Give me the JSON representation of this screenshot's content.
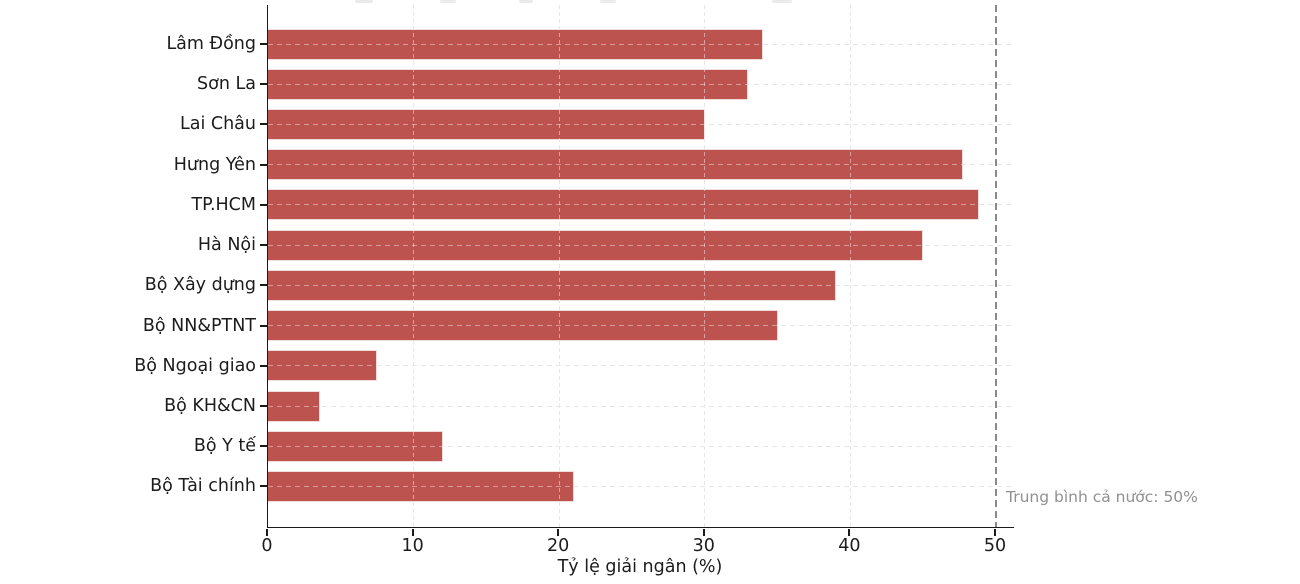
{
  "chart_data": {
    "type": "bar",
    "orientation": "horizontal",
    "categories": [
      "Lâm Đồng",
      "Sơn La",
      "Lai Châu",
      "Hưng Yên",
      "TP.HCM",
      "Hà Nội",
      "Bộ Xây dựng",
      "Bộ NN&PTNT",
      "Bộ Ngoại giao",
      "Bộ KH&CN",
      "Bộ Y tế",
      "Bộ Tài chính"
    ],
    "values": [
      34,
      33,
      30,
      47.7,
      48.8,
      45,
      39,
      35,
      7.5,
      3.6,
      12,
      21
    ],
    "xlabel": "Tỷ lệ giải ngân (%)",
    "x_ticks": [
      "0",
      "10",
      "20",
      "30",
      "40",
      "50"
    ],
    "x_tick_values": [
      0,
      10,
      20,
      30,
      40,
      50
    ],
    "xlim": [
      0,
      51.2
    ],
    "grid": "dashed",
    "legend_position": "none",
    "bar_color": "#bd534f",
    "bar_edge_color": "#ffffff",
    "grid_color": "#d2d2d2",
    "axis_text_color": "#1c1c1c",
    "reference_line": {
      "value": 50,
      "style": "dashed",
      "color": "#8a8a8a",
      "label": "Trung bình cả nước: 50%",
      "label_color": "#909090"
    }
  }
}
